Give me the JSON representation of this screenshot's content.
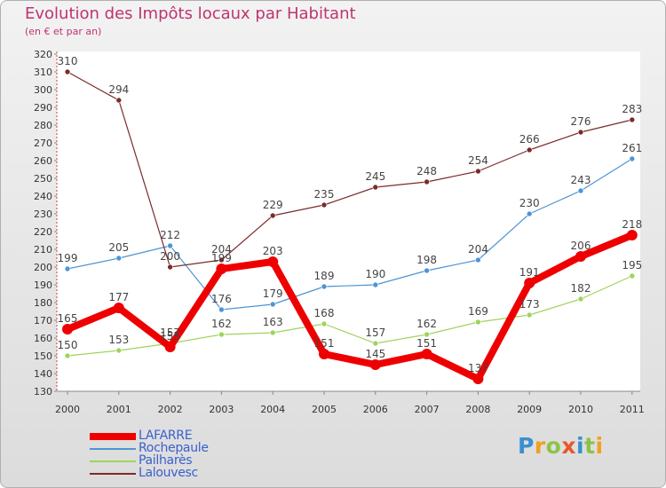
{
  "title": "Evolution des Impôts locaux par Habitant",
  "subtitle": "(en € et par an)",
  "brand": {
    "letters": [
      "P",
      "r",
      "o",
      "x",
      "i",
      "t",
      "i"
    ],
    "colors": [
      "#3a8fd0",
      "#f0a020",
      "#8bc34a",
      "#e8572a",
      "#3a8fd0",
      "#8bc34a",
      "#f0a020"
    ]
  },
  "chart_data": {
    "type": "line",
    "title": "Evolution des Impôts locaux par Habitant",
    "subtitle": "(en € et par an)",
    "x": [
      "2000",
      "2001",
      "2002",
      "2003",
      "2004",
      "2005",
      "2006",
      "2007",
      "2008",
      "2009",
      "2010",
      "2011"
    ],
    "ylim": [
      130,
      320
    ],
    "yticks": [
      130,
      140,
      150,
      160,
      170,
      180,
      190,
      200,
      210,
      220,
      230,
      240,
      250,
      260,
      270,
      280,
      290,
      300,
      310,
      320
    ],
    "grid": false,
    "legend_position": "bottom-left",
    "series": [
      {
        "name": "LAFARRE",
        "color": "#ee0000",
        "emphasis": true,
        "values": [
          165,
          177,
          155,
          199,
          203,
          151,
          145,
          151,
          137,
          191,
          206,
          218
        ],
        "labels": [
          "165",
          "177",
          "155",
          "199",
          "203",
          "151",
          "145",
          "151",
          "137",
          "191",
          "206",
          "218"
        ]
      },
      {
        "name": "Rochepaule",
        "color": "#4d94d4",
        "emphasis": false,
        "values": [
          199,
          205,
          212,
          176,
          179,
          189,
          190,
          198,
          204,
          230,
          243,
          261
        ],
        "labels": [
          "199",
          "205",
          "212",
          "176",
          "179",
          "189",
          "190",
          "198",
          "204",
          "230",
          "243",
          "261"
        ]
      },
      {
        "name": "Pailharès",
        "color": "#9ed45b",
        "emphasis": false,
        "values": [
          150,
          153,
          157,
          162,
          163,
          168,
          157,
          162,
          169,
          173,
          182,
          195
        ],
        "labels": [
          "150",
          "153",
          "157",
          "162",
          "163",
          "168",
          "157",
          "162",
          "169",
          "173",
          "182",
          "195"
        ]
      },
      {
        "name": "Lalouvesc",
        "color": "#7d2a2a",
        "emphasis": false,
        "values": [
          310,
          294,
          200,
          204,
          229,
          235,
          245,
          248,
          254,
          266,
          276,
          283
        ],
        "labels": [
          "310",
          "294",
          "200",
          "204",
          "229",
          "235",
          "245",
          "248",
          "254",
          "266",
          "276",
          "283"
        ]
      }
    ]
  }
}
